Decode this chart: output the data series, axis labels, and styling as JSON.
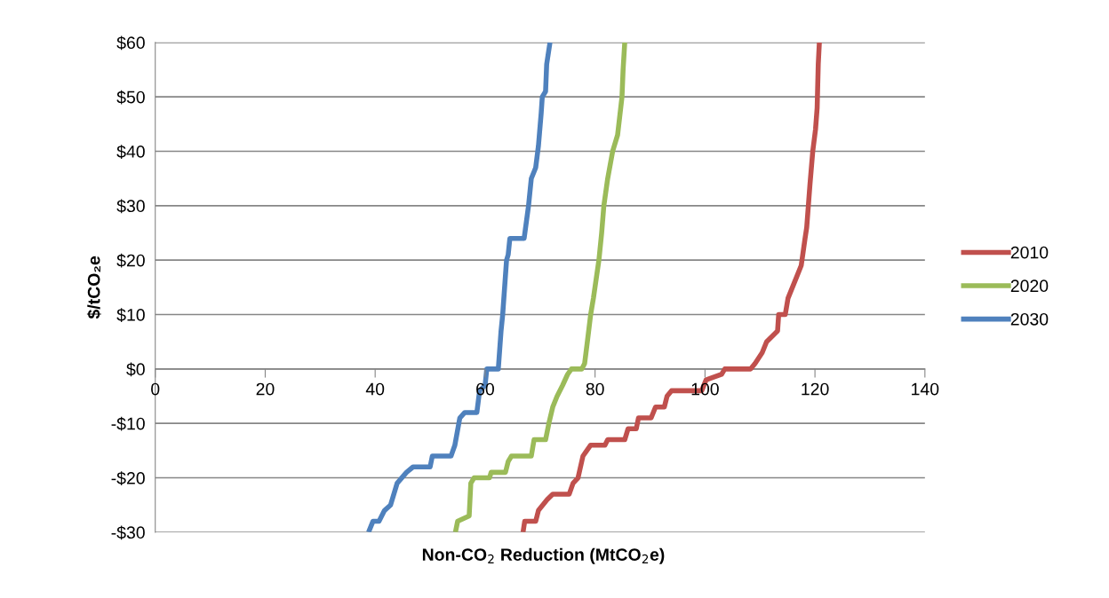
{
  "chart_data": {
    "type": "line",
    "xlabel": "Non-CO$_{2}$ Reduction (MtCO$_{2}$e)",
    "ylabel": "$/tCO₂e",
    "xlim": [
      0,
      140
    ],
    "xticks": [
      0,
      20,
      40,
      60,
      80,
      100,
      120,
      140
    ],
    "ylim": [
      -30,
      60
    ],
    "yticks": [
      {
        "value": -30,
        "label": "-$30"
      },
      {
        "value": -20,
        "label": "-$20"
      },
      {
        "value": -10,
        "label": "-$10"
      },
      {
        "value": 0,
        "label": "$0"
      },
      {
        "value": 10,
        "label": "$10"
      },
      {
        "value": 20,
        "label": "$20"
      },
      {
        "value": 30,
        "label": "$30"
      },
      {
        "value": 40,
        "label": "$40"
      },
      {
        "value": 50,
        "label": "$50"
      },
      {
        "value": 60,
        "label": "$60"
      }
    ],
    "grid": "y",
    "legend": "right",
    "marker": "none",
    "line_style": "solid",
    "series": [
      {
        "name": "2010",
        "color": "#c0504d",
        "x": [
          66.9,
          67.2,
          69.2,
          69.7,
          71.3,
          72.3,
          75.3,
          76.0,
          76.9,
          77.8,
          79.2,
          81.8,
          82.3,
          85.4,
          86.0,
          87.5,
          87.9,
          90.2,
          91.0,
          92.6,
          93.1,
          93.9,
          99.4,
          100.2,
          103.0,
          103.6,
          108.3,
          109.1,
          110.4,
          111.2,
          113.2,
          113.4,
          114.6,
          115.1,
          116.7,
          117.5,
          118.2,
          118.5,
          119.1,
          119.6,
          120.1,
          120.4,
          120.6,
          120.8
        ],
        "values": [
          -30,
          -28,
          -28,
          -26,
          -24,
          -23,
          -23,
          -21,
          -20,
          -16,
          -14,
          -14,
          -13,
          -13,
          -11,
          -11,
          -9,
          -9,
          -7,
          -7,
          -5,
          -4,
          -4,
          -2,
          -1,
          0,
          0,
          1,
          3,
          5,
          7,
          10,
          10,
          13,
          17,
          19,
          24,
          26,
          34,
          40,
          44,
          48,
          56,
          60
        ]
      },
      {
        "name": "2020",
        "color": "#9bbb59",
        "x": [
          54.6,
          55.0,
          57.1,
          57.4,
          58.0,
          60.8,
          61.1,
          63.7,
          64.2,
          64.8,
          68.4,
          68.9,
          71.0,
          71.6,
          72.3,
          73.1,
          74.1,
          75.0,
          75.7,
          77.6,
          78.1,
          78.6,
          79.2,
          79.7,
          80.7,
          81.2,
          81.6,
          82.3,
          83.2,
          84.1,
          84.9,
          85.1,
          85.4
        ],
        "values": [
          -30,
          -28,
          -27,
          -21,
          -20,
          -20,
          -19,
          -19,
          -17,
          -16,
          -16,
          -13,
          -13,
          -10,
          -7,
          -5,
          -3,
          -1,
          0,
          0,
          1,
          5,
          10,
          13,
          20,
          25,
          30,
          35,
          40,
          43,
          50,
          55,
          60
        ]
      },
      {
        "name": "2030",
        "color": "#4f81bd",
        "x": [
          38.8,
          39.6,
          40.7,
          41.7,
          42.8,
          44.0,
          45.7,
          46.9,
          50.0,
          50.4,
          53.8,
          54.5,
          55.4,
          56.3,
          58.5,
          59.0,
          60.0,
          60.3,
          62.4,
          62.9,
          63.2,
          63.9,
          64.2,
          64.5,
          67.1,
          67.9,
          68.4,
          69.2,
          69.7,
          70.2,
          70.4,
          71.0,
          71.2,
          71.5,
          71.8
        ],
        "values": [
          -30,
          -28,
          -28,
          -26,
          -25,
          -21,
          -19,
          -18,
          -18,
          -16,
          -16,
          -14,
          -9,
          -8,
          -8,
          -4,
          -3,
          0,
          0,
          7,
          10,
          20,
          21,
          24,
          24,
          30,
          35,
          37,
          41,
          47,
          50,
          51,
          56,
          58,
          60
        ]
      }
    ]
  }
}
